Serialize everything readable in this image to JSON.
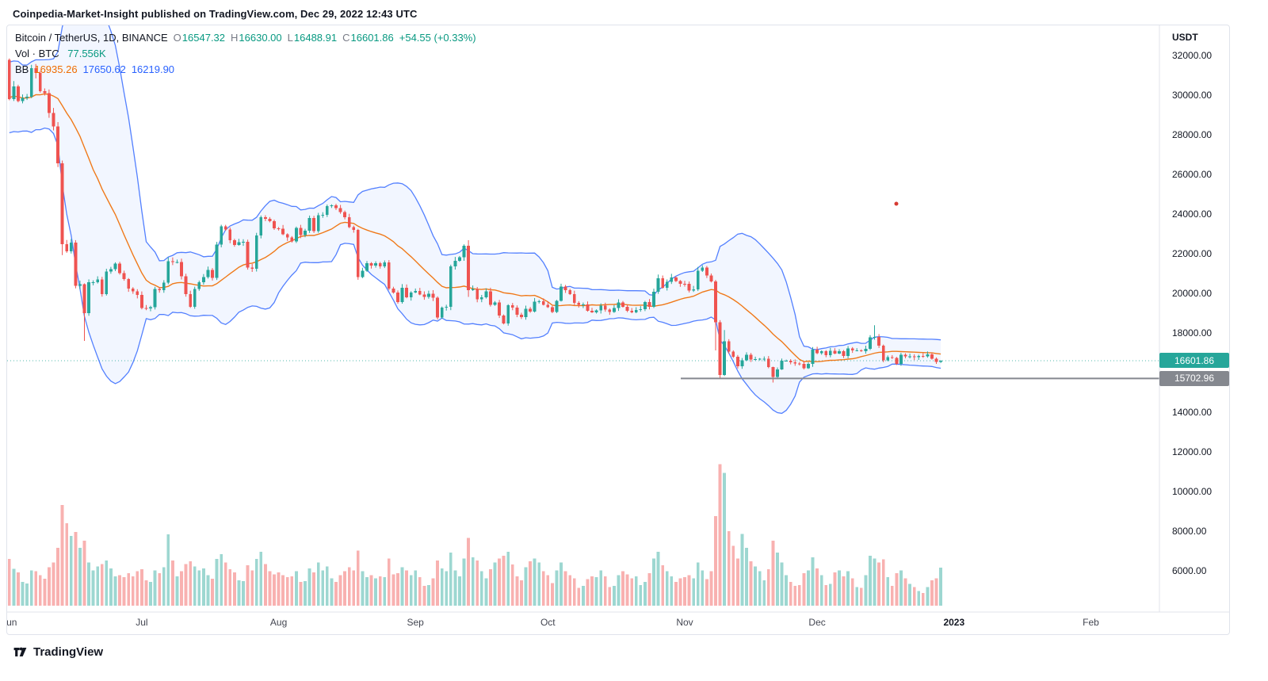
{
  "header": {
    "text": "Coinpedia-Market-Insight published on TradingView.com, Dec 29, 2022 12:43 UTC"
  },
  "legend": {
    "title": "Bitcoin / TetherUS, 1D, BINANCE",
    "ohlc": [
      {
        "k": "O",
        "v": "16547.32"
      },
      {
        "k": "H",
        "v": "16630.00"
      },
      {
        "k": "L",
        "v": "16488.91"
      },
      {
        "k": "C",
        "v": "16601.86"
      }
    ],
    "change": "+54.55 (+0.33%)",
    "vol_label": "Vol · BTC",
    "vol_value": "77.556K",
    "bb_label": "BB",
    "bb_values": [
      "16935.26",
      "17650.62",
      "16219.90"
    ]
  },
  "price_axis": {
    "currency": "USDT",
    "last_price_label": "16601.86",
    "support_price_label": "15702.96"
  },
  "time_axis": {
    "months": [
      {
        "label": "Jun",
        "day": 0
      },
      {
        "label": "Jul",
        "day": 30
      },
      {
        "label": "Aug",
        "day": 61
      },
      {
        "label": "Sep",
        "day": 92
      },
      {
        "label": "Oct",
        "day": 122
      },
      {
        "label": "Nov",
        "day": 153
      },
      {
        "label": "Dec",
        "day": 183
      },
      {
        "label": "2023",
        "day": 214,
        "emph": true
      },
      {
        "label": "Feb",
        "day": 245
      }
    ]
  },
  "footer": {
    "brand": "TradingView"
  },
  "palette": {
    "up": "#26a69a",
    "down": "#ef5350",
    "legend_up": "#089981",
    "bb_band": "#2962ff",
    "bb_basis": "#ef6c00",
    "bb_fill": "rgba(41,98,255,0.06)",
    "last_price_line": "#26a69a",
    "support_line": "#85888f",
    "badge_last_bg": "#26a69a",
    "badge_support_bg": "#85888f"
  },
  "chart_data": {
    "type": "candlestick",
    "symbol": "Bitcoin / TetherUS",
    "interval": "1D",
    "exchange": "BINANCE",
    "start_date": "2022-06-01",
    "last_price": 16601.86,
    "support_level": 15702.96,
    "ohlc_last": {
      "open": 16547.32,
      "high": 16630.0,
      "low": 16488.91,
      "close": 16601.86
    },
    "bollinger": {
      "period": 20,
      "stddev": 2,
      "basis_last": 16935.26,
      "upper_last": 17650.62,
      "lower_last": 16219.9
    },
    "y_ticks": [
      32000,
      30000,
      28000,
      26000,
      24000,
      22000,
      20000,
      18000,
      14000,
      12000,
      10000,
      8000,
      6000
    ],
    "ylim": [
      5000,
      32750
    ],
    "pre_closes": [
      29000,
      29300,
      30100,
      31300,
      29850,
      30450,
      28700,
      30300,
      29200,
      29450,
      30300,
      29100,
      29650,
      29550,
      29200,
      28600,
      29030,
      30300,
      31730,
      31790
    ],
    "closes": [
      29800,
      30450,
      29700,
      29860,
      29920,
      31370,
      31120,
      30210,
      30110,
      29100,
      28420,
      26570,
      22490,
      22130,
      22570,
      20380,
      20470,
      19010,
      20570,
      20570,
      20710,
      19970,
      21100,
      21230,
      21500,
      21030,
      20730,
      20250,
      20110,
      19920,
      19270,
      19240,
      19300,
      20230,
      20160,
      20540,
      21630,
      21590,
      21590,
      20860,
      19960,
      19330,
      20230,
      20570,
      20830,
      21190,
      20780,
      22470,
      23390,
      23230,
      22690,
      22450,
      22580,
      22600,
      21310,
      21240,
      22930,
      23840,
      23770,
      23640,
      23290,
      23270,
      22980,
      22830,
      22620,
      23310,
      22950,
      23170,
      23810,
      23150,
      23950,
      23960,
      24400,
      24440,
      24310,
      24100,
      23850,
      23340,
      23200,
      20830,
      21140,
      21520,
      21400,
      21530,
      21370,
      21560,
      20240,
      20040,
      19560,
      20290,
      19800,
      20050,
      20130,
      19950,
      19830,
      19990,
      19790,
      18790,
      19290,
      19320,
      21360,
      21650,
      21830,
      22400,
      20170,
      20230,
      19700,
      19800,
      20110,
      19420,
      19540,
      18890,
      18490,
      19410,
      19290,
      18920,
      18810,
      19220,
      19080,
      19590,
      19600,
      19430,
      19310,
      19060,
      19630,
      20340,
      20160,
      19960,
      19530,
      19420,
      19440,
      19130,
      19050,
      19150,
      19380,
      19180,
      19070,
      19260,
      19550,
      19330,
      19120,
      19040,
      19160,
      19200,
      19570,
      19330,
      20080,
      20770,
      20290,
      20590,
      20810,
      20620,
      20490,
      20480,
      20150,
      20210,
      21150,
      21300,
      20910,
      20600,
      18540,
      15880,
      17590,
      17070,
      16800,
      16330,
      16620,
      16900,
      16670,
      16690,
      16700,
      16700,
      16280,
      15780,
      16170,
      16600,
      16600,
      16520,
      16460,
      16440,
      16220,
      16440,
      17170,
      16980,
      17090,
      16890,
      17110,
      16970,
      17090,
      16840,
      17230,
      17130,
      17130,
      17090,
      17210,
      17780,
      17810,
      17360,
      16630,
      16780,
      16740,
      16440,
      16900,
      16820,
      16820,
      16780,
      16840,
      16830,
      16920,
      16700,
      16540,
      16601.86
    ],
    "volumes": [
      95,
      75,
      68,
      48,
      45,
      72,
      70,
      62,
      55,
      78,
      88,
      118,
      205,
      168,
      142,
      150,
      118,
      132,
      88,
      72,
      80,
      85,
      92,
      76,
      60,
      62,
      58,
      66,
      60,
      70,
      74,
      52,
      48,
      72,
      66,
      78,
      145,
      92,
      60,
      70,
      85,
      90,
      80,
      72,
      76,
      62,
      55,
      95,
      105,
      88,
      74,
      68,
      52,
      50,
      82,
      72,
      95,
      110,
      85,
      70,
      64,
      68,
      62,
      58,
      60,
      70,
      48,
      50,
      76,
      68,
      88,
      72,
      80,
      56,
      48,
      62,
      70,
      78,
      72,
      112,
      70,
      58,
      62,
      56,
      60,
      58,
      96,
      64,
      66,
      78,
      72,
      62,
      72,
      58,
      40,
      42,
      56,
      92,
      76,
      70,
      108,
      72,
      60,
      96,
      138,
      98,
      92,
      70,
      56,
      74,
      88,
      96,
      102,
      110,
      84,
      60,
      52,
      78,
      90,
      96,
      88,
      70,
      62,
      46,
      72,
      88,
      70,
      62,
      56,
      36,
      40,
      54,
      60,
      58,
      72,
      60,
      38,
      40,
      62,
      70,
      64,
      56,
      60,
      42,
      48,
      66,
      96,
      110,
      82,
      70,
      60,
      48,
      56,
      58,
      62,
      56,
      88,
      72,
      54,
      70,
      182,
      288,
      270,
      152,
      122,
      96,
      146,
      118,
      90,
      80,
      70,
      52,
      74,
      132,
      108,
      88,
      62,
      48,
      40,
      42,
      66,
      72,
      98,
      76,
      62,
      42,
      44,
      68,
      72,
      60,
      70,
      56,
      38,
      36,
      62,
      102,
      96,
      88,
      94,
      58,
      40,
      66,
      72,
      56,
      44,
      38,
      30,
      26,
      38,
      52,
      56,
      77.556
    ],
    "wick_overrides": {
      "12": [
        26700,
        21930
      ],
      "17": [
        20500,
        17600
      ],
      "104": [
        22680,
        19820
      ],
      "160": [
        20680,
        17120
      ],
      "161": [
        18650,
        15702.96
      ],
      "162": [
        18150,
        15830
      ],
      "173": [
        16300,
        15500
      ],
      "196": [
        18390,
        17660
      ]
    }
  }
}
